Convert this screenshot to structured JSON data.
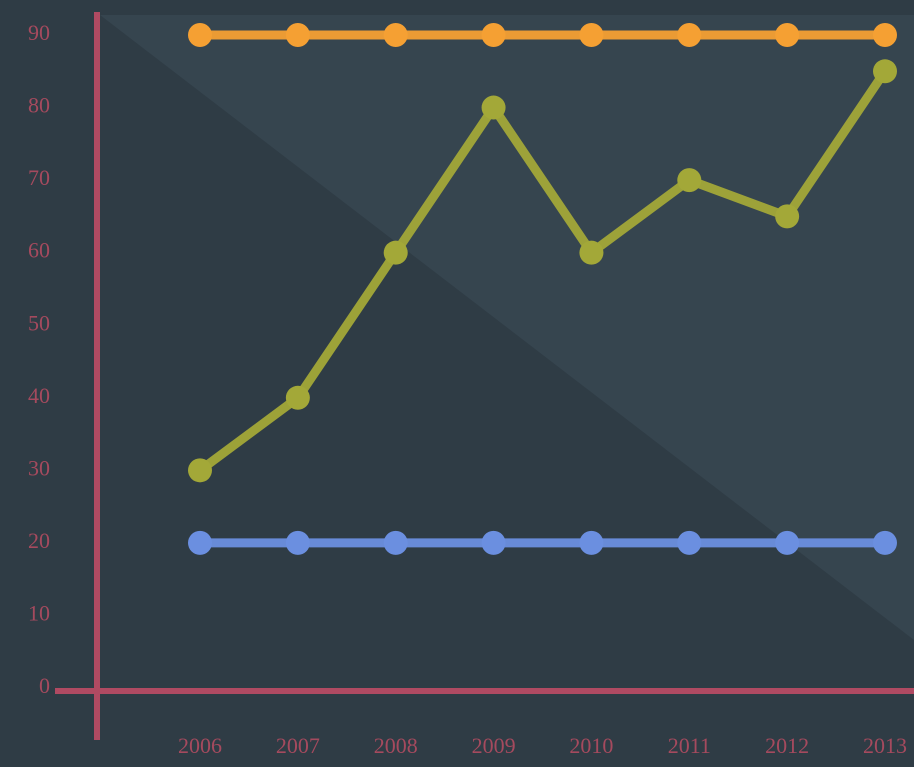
{
  "chart_data": {
    "type": "line",
    "categories": [
      "2006",
      "2007",
      "2008",
      "2009",
      "2010",
      "2011",
      "2012",
      "2013"
    ],
    "series": [
      {
        "color": "#f5a033",
        "values": [
          90,
          90,
          90,
          90,
          90,
          90,
          90,
          90
        ]
      },
      {
        "color": "#a3a838",
        "values": [
          30,
          40,
          60,
          80,
          60,
          70,
          65,
          85
        ]
      },
      {
        "color": "#6b8fe0",
        "values": [
          20,
          20,
          20,
          20,
          20,
          20,
          20,
          20
        ]
      }
    ],
    "ylim": [
      0,
      90
    ],
    "yticks": [
      0,
      10,
      20,
      30,
      40,
      50,
      60,
      70,
      80,
      90
    ],
    "grid": false
  }
}
